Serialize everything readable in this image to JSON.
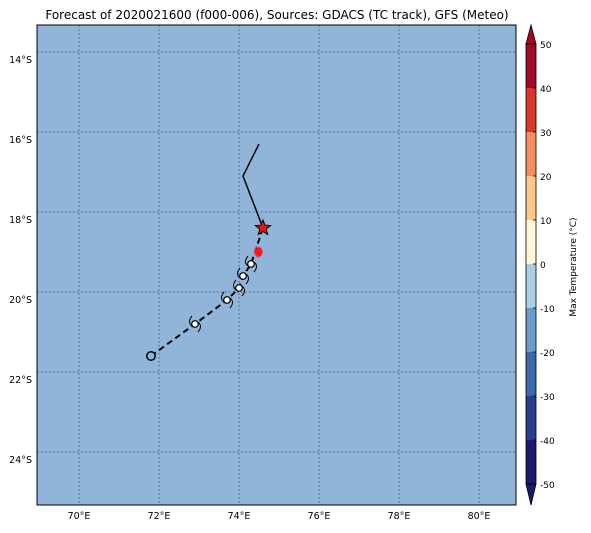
{
  "title": "Forecast of 2020021600 (f000-006), Sources: GDACS (TC track), GFS (Meteo)",
  "map": {
    "ocean_color": "#91b5d9",
    "lon_ticks": [
      "70°E",
      "72°E",
      "74°E",
      "76°E",
      "78°E",
      "80°E"
    ],
    "lat_ticks": [
      "14°S",
      "16°S",
      "18°S",
      "20°S",
      "22°S",
      "24°S"
    ],
    "grid": "dotted"
  },
  "track": {
    "past_path": [
      [
        71.8,
        -21.6
      ],
      [
        72.9,
        -20.8
      ],
      [
        73.7,
        -20.2
      ],
      [
        74.0,
        -19.9
      ],
      [
        74.1,
        -19.6
      ],
      [
        74.3,
        -19.3
      ],
      [
        74.6,
        -18.4
      ]
    ],
    "future_path": [
      [
        74.6,
        -18.4
      ],
      [
        74.1,
        -17.1
      ],
      [
        74.5,
        -16.3
      ]
    ],
    "storm_markers": [
      [
        72.9,
        -20.8
      ],
      [
        73.7,
        -20.2
      ],
      [
        74.0,
        -19.9
      ],
      [
        74.1,
        -19.6
      ],
      [
        74.3,
        -19.3
      ]
    ],
    "start_point": [
      71.8,
      -21.6
    ],
    "current_position": [
      74.6,
      -18.4
    ],
    "hot_spot": [
      74.5,
      -19.0
    ]
  },
  "colorbar": {
    "label": "Max Temperature (°C)",
    "ticks": [
      "50",
      "40",
      "30",
      "20",
      "10",
      "0",
      "-10",
      "-20",
      "-30",
      "-40",
      "-50"
    ],
    "colors": [
      "#1a1a6e",
      "#2c3b92",
      "#3a6aae",
      "#6a9ccb",
      "#a8cfe4",
      "#e6f2f7",
      "#fff5d8",
      "#fdc98a",
      "#f58d5c",
      "#d8372c",
      "#a10a26"
    ]
  }
}
